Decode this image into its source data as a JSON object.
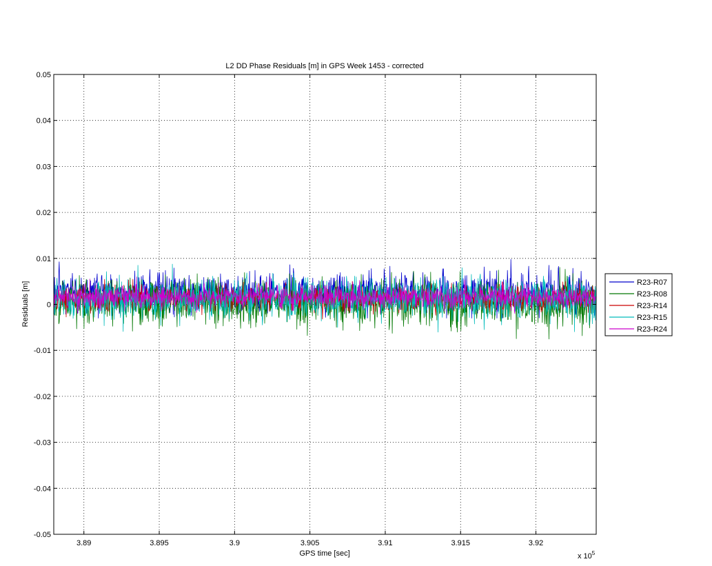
{
  "chart_data": {
    "type": "line",
    "title": "L2 DD Phase Residuals [m] in GPS Week 1453 - corrected",
    "xlabel": "GPS time [sec]",
    "ylabel": "Residuals [m]",
    "x_exponent_label": "x 10",
    "x_exponent_power": "5",
    "xlim": [
      3.888,
      3.924
    ],
    "ylim": [
      -0.05,
      0.05
    ],
    "x_ticks": [
      3.89,
      3.895,
      3.9,
      3.905,
      3.91,
      3.915,
      3.92
    ],
    "x_tick_labels": [
      "3.89",
      "3.895",
      "3.9",
      "3.905",
      "3.91",
      "3.915",
      "3.92"
    ],
    "y_ticks": [
      -0.05,
      -0.04,
      -0.03,
      -0.02,
      -0.01,
      0,
      0.01,
      0.02,
      0.03,
      0.04,
      0.05
    ],
    "y_tick_labels": [
      "-0.05",
      "-0.04",
      "-0.03",
      "-0.02",
      "-0.01",
      "0",
      "0.01",
      "0.02",
      "0.03",
      "0.04",
      "0.05"
    ],
    "grid": true,
    "legend_position": "outside-right",
    "series": [
      {
        "name": "R23-R07",
        "color": "#0000cc",
        "mean": 0.0025,
        "std": 0.0022,
        "min": -0.003,
        "max": 0.011
      },
      {
        "name": "R23-R08",
        "color": "#007700",
        "mean": 0.0005,
        "std": 0.0026,
        "min": -0.0095,
        "max": 0.0095
      },
      {
        "name": "R23-R14",
        "color": "#cc0000",
        "mean": 0.0012,
        "std": 0.0013,
        "min": -0.004,
        "max": 0.0065
      },
      {
        "name": "R23-R15",
        "color": "#00bbbb",
        "mean": 0.0013,
        "std": 0.0022,
        "min": -0.0087,
        "max": 0.0133
      },
      {
        "name": "R23-R24",
        "color": "#cc00cc",
        "mean": 0.0016,
        "std": 0.0012,
        "min": -0.002,
        "max": 0.006
      }
    ]
  }
}
